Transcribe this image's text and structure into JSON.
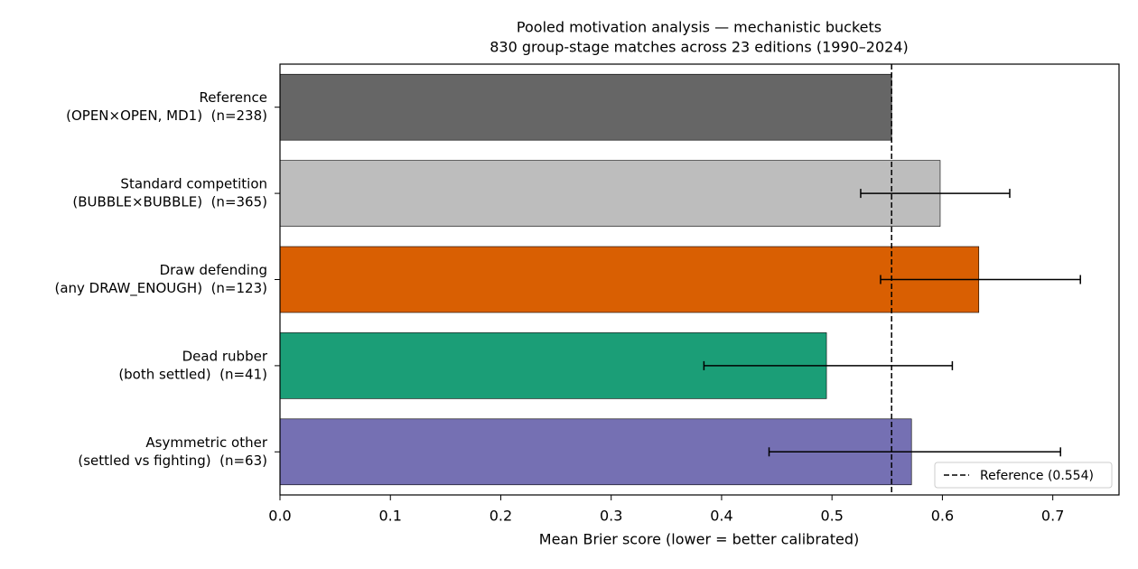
{
  "chart_data": {
    "type": "barh",
    "title": "Pooled motivation analysis — mechanistic buckets",
    "subtitle": "830 group-stage matches across 23 editions (1990–2024)",
    "x_label": "Mean Brier score (lower = better calibrated)",
    "categories": [
      [
        "Reference",
        "(OPEN×OPEN, MD1)  (n=238)"
      ],
      [
        "Standard competition",
        "(BUBBLE×BUBBLE)  (n=365)"
      ],
      [
        "Draw defending",
        "(any DRAW_ENOUGH)  (n=123)"
      ],
      [
        "Dead rubber",
        "(both settled)  (n=41)"
      ],
      [
        "Asymmetric other",
        "(settled vs fighting)  (n=63)"
      ]
    ],
    "values": [
      0.554,
      0.598,
      0.633,
      0.495,
      0.572
    ],
    "ci_low": [
      null,
      0.526,
      0.544,
      0.384,
      0.443
    ],
    "ci_high": [
      null,
      0.661,
      0.725,
      0.609,
      0.707
    ],
    "colors": [
      "#666666",
      "#bdbdbd",
      "#d95f02",
      "#1b9e77",
      "#7570b3"
    ],
    "xlim": [
      0,
      0.76
    ],
    "xticks": [
      {
        "value": 0,
        "label": "0.0"
      },
      0.1,
      0.2,
      0.3,
      0.4,
      0.5,
      0.6,
      0.7
    ],
    "reference_line": {
      "value": 0.554,
      "label": "Reference (0.554)"
    },
    "legend_position": "lower right"
  }
}
